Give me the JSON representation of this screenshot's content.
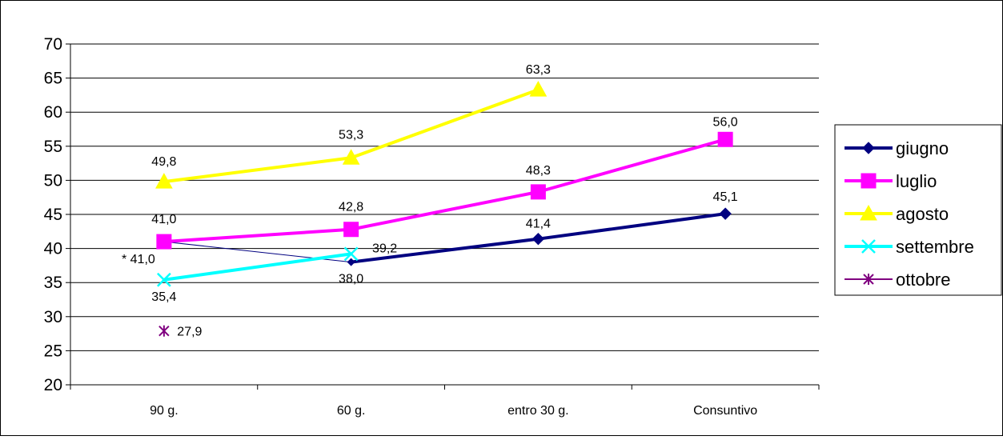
{
  "chart_data": {
    "type": "line",
    "title": "",
    "xlabel": "",
    "ylabel": "",
    "categories": [
      "90 g.",
      "60 g.",
      "entro 30 g.",
      "Consuntivo"
    ],
    "ylim": [
      20,
      70
    ],
    "yticks": [
      20,
      25,
      30,
      35,
      40,
      45,
      50,
      55,
      60,
      65,
      70
    ],
    "grid": true,
    "legend_position": "right",
    "series": [
      {
        "name": "giugno",
        "color": "#000080",
        "marker": "diamond",
        "values": [
          41.0,
          38.0,
          41.4,
          45.1
        ],
        "labels": [
          "* 41,0",
          "38,0",
          "41,4",
          "45,1"
        ]
      },
      {
        "name": "luglio",
        "color": "#FF00FF",
        "marker": "square",
        "values": [
          41.0,
          42.8,
          48.3,
          56.0
        ],
        "labels": [
          "41,0",
          "42,8",
          "48,3",
          "56,0"
        ]
      },
      {
        "name": "agosto",
        "color": "#FFFF00",
        "marker": "triangle",
        "values": [
          49.8,
          53.3,
          63.3,
          null
        ],
        "labels": [
          "49,8",
          "53,3",
          "63,3",
          ""
        ]
      },
      {
        "name": "settembre",
        "color": "#00FFFF",
        "marker": "x",
        "values": [
          35.4,
          39.2,
          null,
          null
        ],
        "labels": [
          "35,4",
          "39,2",
          "",
          ""
        ]
      },
      {
        "name": "ottobre",
        "color": "#800080",
        "marker": "star",
        "values": [
          27.9,
          null,
          null,
          null
        ],
        "labels": [
          "27,9",
          "",
          "",
          ""
        ]
      }
    ]
  }
}
